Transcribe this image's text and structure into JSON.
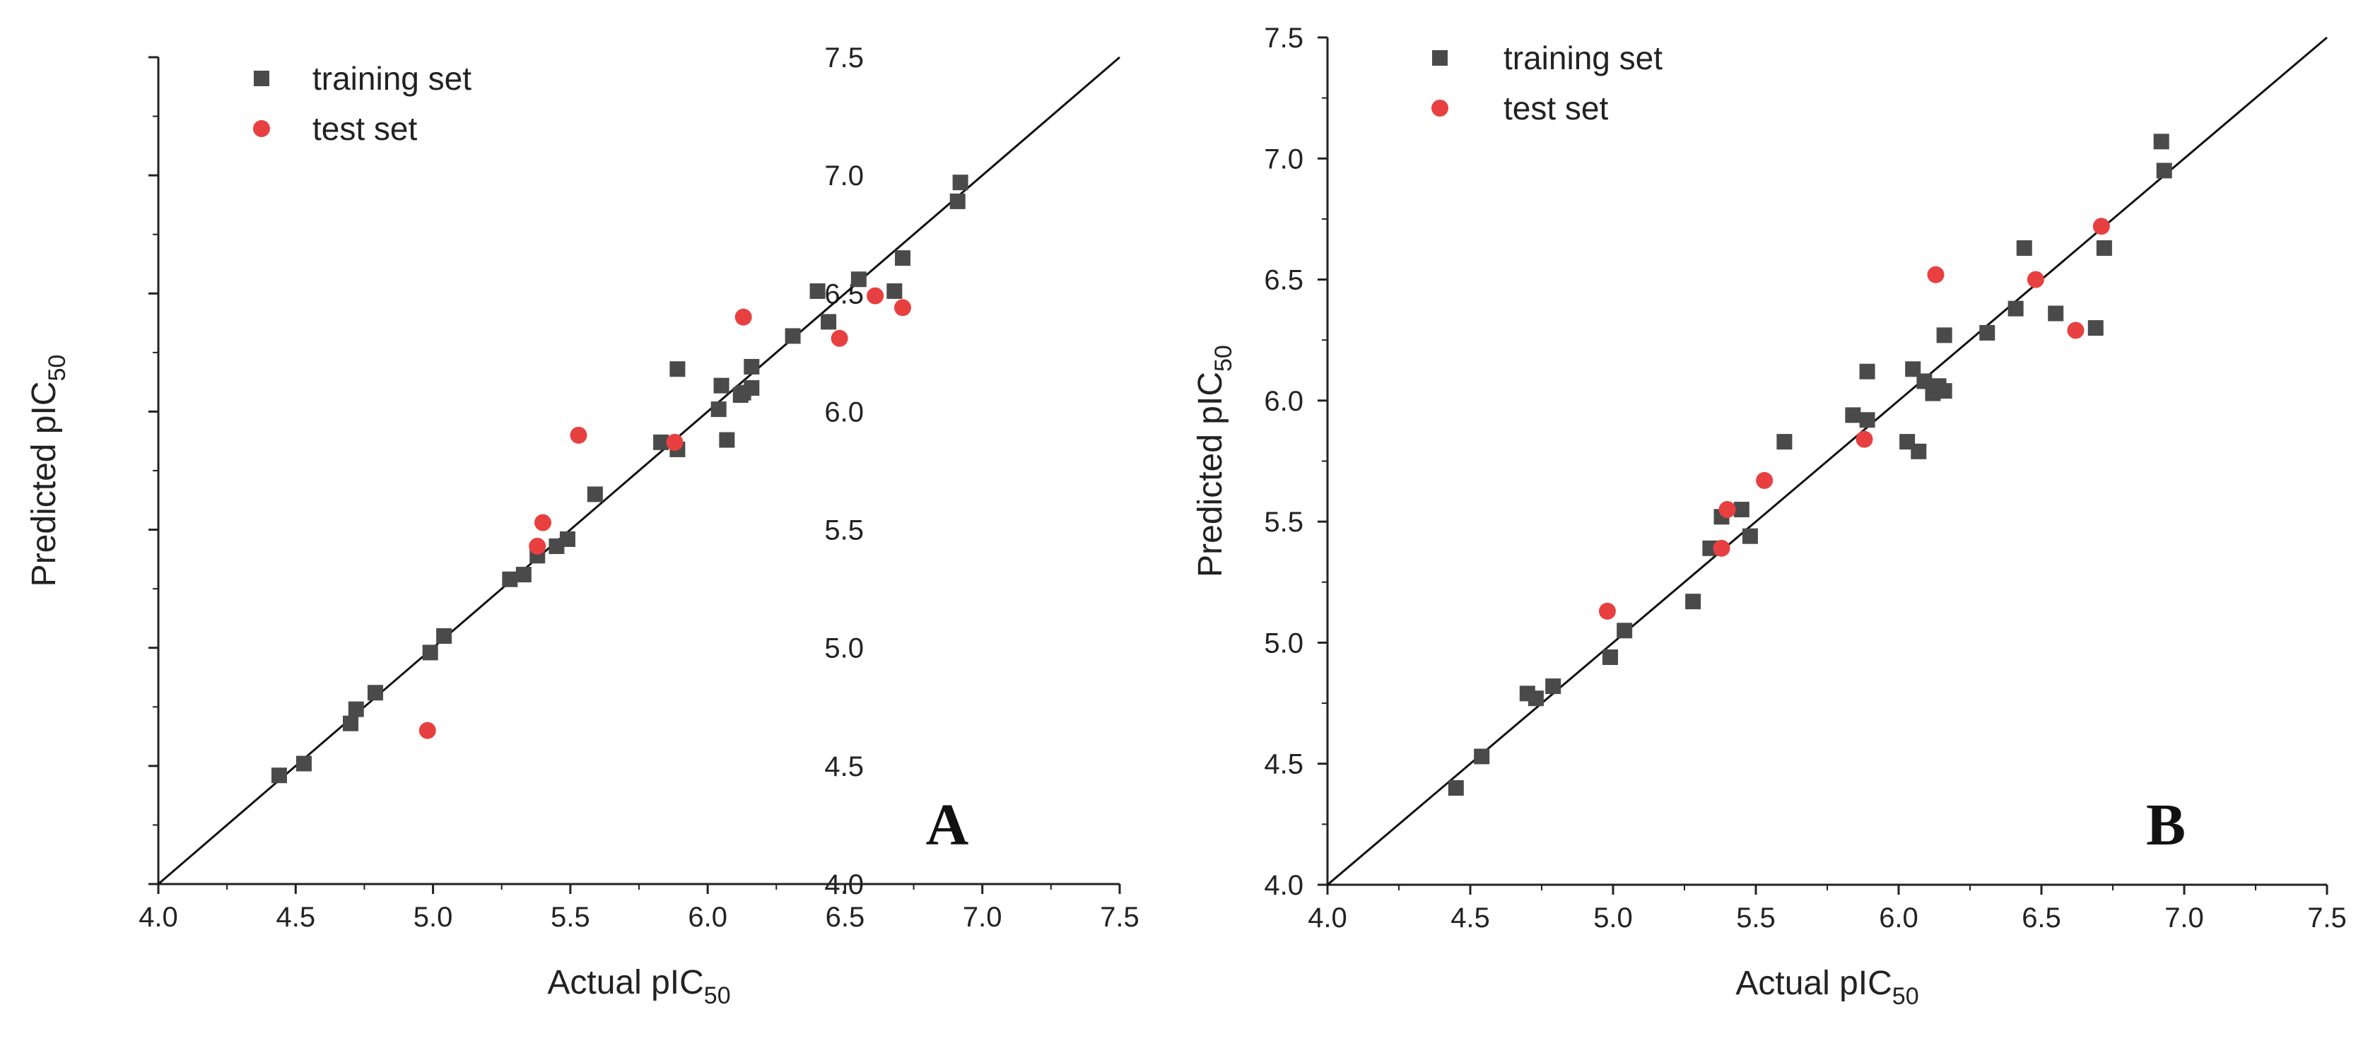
{
  "chart_data": [
    {
      "type": "scatter",
      "panel_label": "A",
      "xlabel": "Actual pIC",
      "xlabel_sub": "50",
      "ylabel": "Predicted pIC",
      "ylabel_sub": "50",
      "xlim": [
        4.0,
        7.5
      ],
      "ylim": [
        4.0,
        7.5
      ],
      "xticks": [
        "4.0",
        "4.5",
        "5.0",
        "5.5",
        "6.0",
        "6.5",
        "7.0",
        "7.5"
      ],
      "yticks": [
        "4.0",
        "4.5",
        "5.0",
        "5.5",
        "6.0",
        "6.5",
        "7.0",
        "7.5"
      ],
      "identity_line": true,
      "legend": [
        "training set",
        "test set"
      ],
      "series": [
        {
          "name": "training set",
          "marker": "square",
          "color": "#4a4a4a",
          "points": [
            [
              4.44,
              4.46
            ],
            [
              4.53,
              4.51
            ],
            [
              4.7,
              4.68
            ],
            [
              4.72,
              4.74
            ],
            [
              4.79,
              4.81
            ],
            [
              4.99,
              4.98
            ],
            [
              5.04,
              5.05
            ],
            [
              5.28,
              5.29
            ],
            [
              5.33,
              5.31
            ],
            [
              5.38,
              5.39
            ],
            [
              5.45,
              5.43
            ],
            [
              5.49,
              5.46
            ],
            [
              5.59,
              5.65
            ],
            [
              5.83,
              5.87
            ],
            [
              5.89,
              5.84
            ],
            [
              5.89,
              6.18
            ],
            [
              6.04,
              6.01
            ],
            [
              6.05,
              6.11
            ],
            [
              6.07,
              5.88
            ],
            [
              6.12,
              6.07
            ],
            [
              6.13,
              6.08
            ],
            [
              6.16,
              6.1
            ],
            [
              6.16,
              6.19
            ],
            [
              6.31,
              6.32
            ],
            [
              6.4,
              6.51
            ],
            [
              6.44,
              6.38
            ],
            [
              6.55,
              6.56
            ],
            [
              6.68,
              6.51
            ],
            [
              6.71,
              6.65
            ],
            [
              6.91,
              6.89
            ],
            [
              6.92,
              6.97
            ]
          ]
        },
        {
          "name": "test set",
          "marker": "circle",
          "color": "#e84040",
          "points": [
            [
              4.98,
              4.65
            ],
            [
              5.38,
              5.43
            ],
            [
              5.4,
              5.53
            ],
            [
              5.53,
              5.9
            ],
            [
              5.88,
              5.87
            ],
            [
              6.13,
              6.4
            ],
            [
              6.48,
              6.31
            ],
            [
              6.61,
              6.49
            ],
            [
              6.71,
              6.44
            ]
          ]
        }
      ]
    },
    {
      "type": "scatter",
      "panel_label": "B",
      "xlabel": "Actual pIC",
      "xlabel_sub": "50",
      "ylabel": "Predicted pIC",
      "ylabel_sub": "50",
      "xlim": [
        4.0,
        7.5
      ],
      "ylim": [
        4.0,
        7.5
      ],
      "xticks": [
        "4.0",
        "4.5",
        "5.0",
        "5.5",
        "6.0",
        "6.5",
        "7.0",
        "7.5"
      ],
      "yticks": [
        "4.0",
        "4.5",
        "5.0",
        "5.5",
        "6.0",
        "6.5",
        "7.0",
        "7.5"
      ],
      "identity_line": true,
      "legend": [
        "training set",
        "test set"
      ],
      "series": [
        {
          "name": "training set",
          "marker": "square",
          "color": "#4a4a4a",
          "points": [
            [
              4.45,
              4.4
            ],
            [
              4.54,
              4.53
            ],
            [
              4.7,
              4.79
            ],
            [
              4.73,
              4.77
            ],
            [
              4.79,
              4.82
            ],
            [
              4.99,
              4.94
            ],
            [
              5.04,
              5.05
            ],
            [
              5.28,
              5.17
            ],
            [
              5.34,
              5.39
            ],
            [
              5.38,
              5.52
            ],
            [
              5.45,
              5.55
            ],
            [
              5.48,
              5.44
            ],
            [
              5.6,
              5.83
            ],
            [
              5.84,
              5.94
            ],
            [
              5.89,
              5.92
            ],
            [
              5.89,
              6.12
            ],
            [
              6.03,
              5.83
            ],
            [
              6.05,
              6.13
            ],
            [
              6.07,
              5.79
            ],
            [
              6.09,
              6.08
            ],
            [
              6.12,
              6.03
            ],
            [
              6.14,
              6.06
            ],
            [
              6.16,
              6.04
            ],
            [
              6.16,
              6.27
            ],
            [
              6.31,
              6.28
            ],
            [
              6.41,
              6.38
            ],
            [
              6.44,
              6.63
            ],
            [
              6.55,
              6.36
            ],
            [
              6.69,
              6.3
            ],
            [
              6.72,
              6.63
            ],
            [
              6.92,
              7.07
            ],
            [
              6.93,
              6.95
            ]
          ]
        },
        {
          "name": "test set",
          "marker": "circle",
          "color": "#e84040",
          "points": [
            [
              4.98,
              5.13
            ],
            [
              5.38,
              5.39
            ],
            [
              5.4,
              5.55
            ],
            [
              5.53,
              5.67
            ],
            [
              5.88,
              5.84
            ],
            [
              6.13,
              6.52
            ],
            [
              6.48,
              6.5
            ],
            [
              6.62,
              6.29
            ],
            [
              6.71,
              6.72
            ]
          ]
        }
      ]
    }
  ]
}
